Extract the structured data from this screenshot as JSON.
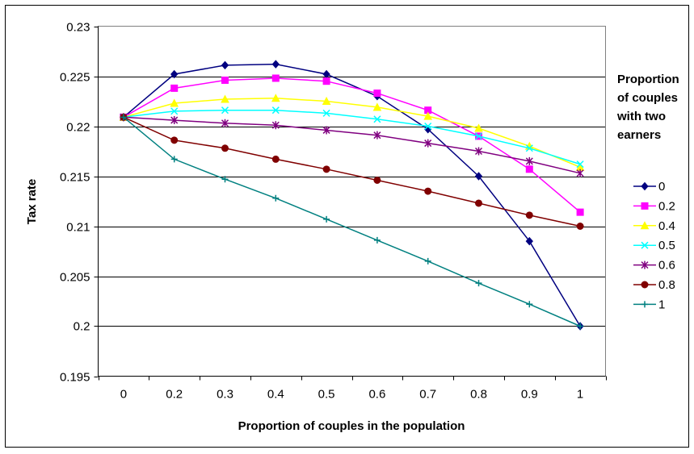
{
  "chart_data": {
    "type": "line",
    "title": "",
    "xlabel": "Proportion of couples in the population",
    "ylabel": "Tax rate",
    "categories": [
      "0",
      "0.2",
      "0.3",
      "0.4",
      "0.5",
      "0.6",
      "0.7",
      "0.8",
      "0.9",
      "1"
    ],
    "ylim": [
      0.195,
      0.23
    ],
    "yticks": [
      "0.195",
      "0.2",
      "0.205",
      "0.21",
      "0.215",
      "0.22",
      "0.225",
      "0.23"
    ],
    "grid": "horizontal",
    "legend_position": "right",
    "legend_title": [
      "Proportion",
      "of couples",
      "with two",
      "earners"
    ],
    "series": [
      {
        "name": "0",
        "color": "#000080",
        "marker": "diamond",
        "values": [
          0.2209,
          0.2252,
          0.2261,
          0.2262,
          0.2252,
          0.223,
          0.2197,
          0.215,
          0.2085,
          0.2
        ]
      },
      {
        "name": "0.2",
        "color": "#FF00FF",
        "marker": "square",
        "values": [
          0.2209,
          0.2238,
          0.2246,
          0.2248,
          0.2245,
          0.2233,
          0.2216,
          0.219,
          0.2157,
          0.2114
        ]
      },
      {
        "name": "0.4",
        "color": "#FFFF00",
        "marker": "triangle",
        "values": [
          0.2209,
          0.2223,
          0.2227,
          0.2228,
          0.2225,
          0.2219,
          0.221,
          0.2198,
          0.218,
          0.2159
        ]
      },
      {
        "name": "0.5",
        "color": "#00FFFF",
        "marker": "x",
        "values": [
          0.2209,
          0.2215,
          0.2216,
          0.2216,
          0.2213,
          0.2207,
          0.22,
          0.219,
          0.2178,
          0.2162
        ]
      },
      {
        "name": "0.6",
        "color": "#800080",
        "marker": "star",
        "values": [
          0.2209,
          0.2206,
          0.2203,
          0.2201,
          0.2196,
          0.2191,
          0.2183,
          0.2175,
          0.2165,
          0.2153
        ]
      },
      {
        "name": "0.8",
        "color": "#800000",
        "marker": "circle",
        "values": [
          0.2209,
          0.2186,
          0.2178,
          0.2167,
          0.2157,
          0.2146,
          0.2135,
          0.2123,
          0.2111,
          0.21
        ]
      },
      {
        "name": "1",
        "color": "#008080",
        "marker": "plus",
        "values": [
          0.2209,
          0.2167,
          0.2147,
          0.2128,
          0.2107,
          0.2086,
          0.2065,
          0.2043,
          0.2022,
          0.2
        ]
      }
    ]
  }
}
